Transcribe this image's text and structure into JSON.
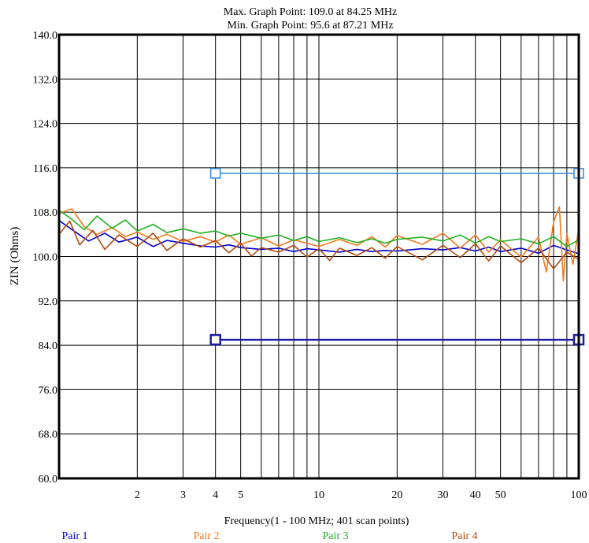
{
  "chart_data": {
    "type": "line",
    "subtitle_max": "Max. Graph Point: 109.0 at 84.25 MHz",
    "subtitle_min": "Min. Graph Point: 95.6 at 87.21 MHz",
    "xlabel": "Frequency(1 - 100 MHz; 401 scan points)",
    "ylabel": "ZIN (Ohms)",
    "x_scale": "log",
    "xlim": [
      1,
      100
    ],
    "ylim": [
      60,
      140
    ],
    "grid": true,
    "yticks": [
      60,
      68,
      76,
      84,
      92,
      100,
      108,
      116,
      124,
      132,
      140
    ],
    "ytick_labels": [
      "60.0",
      "68.0",
      "76.0",
      "84.0",
      "92.0",
      "100.0",
      "108.0",
      "116.0",
      "124.0",
      "132.0",
      "140.0"
    ],
    "xticks": [
      2,
      3,
      4,
      5,
      10,
      20,
      30,
      40,
      50,
      100
    ],
    "xtick_labels": [
      "2",
      "3",
      "4",
      "5",
      "10",
      "20",
      "30",
      "40",
      "50",
      "100"
    ],
    "legend_position": "bottom",
    "limit_lines": [
      {
        "x": [
          4,
          100
        ],
        "y": [
          115.0,
          115.0
        ],
        "color": "#2c8ee0",
        "marker": "square"
      },
      {
        "x": [
          4,
          100
        ],
        "y": [
          85.0,
          85.0
        ],
        "color": "#1c1ca0",
        "marker": "square"
      }
    ],
    "series": [
      {
        "name": "Pair 1",
        "color": "#0000d0",
        "x": [
          1,
          1.15,
          1.3,
          1.5,
          1.7,
          2,
          2.3,
          2.6,
          3,
          3.5,
          4,
          4.5,
          5,
          6,
          7,
          8,
          9,
          10,
          12,
          14,
          16,
          18,
          20,
          25,
          30,
          35,
          40,
          45,
          50,
          60,
          70,
          80,
          90,
          100
        ],
        "y": [
          106.5,
          104.5,
          102.8,
          104.2,
          102.6,
          103.5,
          101.8,
          102.9,
          102.4,
          101.9,
          101.7,
          102.1,
          101.6,
          101.3,
          101.5,
          100.9,
          101.4,
          101.2,
          100.8,
          101.3,
          100.9,
          101.1,
          101.0,
          101.4,
          101.2,
          101.6,
          101.0,
          101.7,
          100.9,
          101.5,
          100.6,
          102.0,
          101.2,
          100.5
        ]
      },
      {
        "name": "Pair 2",
        "color": "#f07a20",
        "x": [
          1,
          1.12,
          1.25,
          1.4,
          1.6,
          1.8,
          2,
          2.3,
          2.6,
          3,
          3.5,
          4,
          4.5,
          5,
          6,
          7,
          8,
          9,
          10,
          12,
          14,
          16,
          18,
          20,
          25,
          30,
          35,
          40,
          45,
          50,
          60,
          70,
          75,
          80,
          84.25,
          87.21,
          90,
          95,
          100
        ],
        "y": [
          107.8,
          108.6,
          105.4,
          104.0,
          105.2,
          103.6,
          104.4,
          103.1,
          104.0,
          102.7,
          103.6,
          102.6,
          103.9,
          102.2,
          103.4,
          101.9,
          103.0,
          102.4,
          101.8,
          103.1,
          102.0,
          103.6,
          101.7,
          103.8,
          102.2,
          104.2,
          101.5,
          103.9,
          100.8,
          103.0,
          99.9,
          103.5,
          97.2,
          106.2,
          109.0,
          95.6,
          104.1,
          98.6,
          105.0
        ]
      },
      {
        "name": "Pair 3",
        "color": "#20b020",
        "x": [
          1,
          1.1,
          1.25,
          1.4,
          1.6,
          1.8,
          2,
          2.3,
          2.6,
          3,
          3.5,
          4,
          4.5,
          5,
          6,
          7,
          8,
          9,
          10,
          12,
          14,
          16,
          18,
          20,
          25,
          30,
          35,
          40,
          45,
          50,
          60,
          70,
          80,
          90,
          100
        ],
        "y": [
          108.3,
          107.0,
          104.8,
          107.3,
          105.1,
          106.6,
          104.6,
          105.8,
          104.3,
          105.0,
          104.2,
          104.6,
          103.7,
          104.2,
          103.3,
          103.9,
          102.9,
          103.6,
          102.7,
          103.4,
          102.5,
          103.2,
          102.4,
          103.1,
          103.5,
          102.8,
          103.9,
          102.4,
          103.6,
          102.7,
          103.2,
          102.3,
          103.6,
          101.8,
          103.0
        ]
      },
      {
        "name": "Pair 4",
        "color": "#b04a10",
        "x": [
          1,
          1.1,
          1.2,
          1.35,
          1.5,
          1.7,
          2,
          2.3,
          2.6,
          3,
          3.5,
          4,
          4.5,
          5,
          5.5,
          6,
          7,
          8,
          9,
          10,
          11,
          12,
          14,
          16,
          18,
          20,
          25,
          30,
          35,
          40,
          45,
          50,
          60,
          70,
          80,
          90,
          100
        ],
        "y": [
          104.0,
          106.4,
          102.1,
          104.7,
          101.3,
          103.9,
          101.8,
          104.2,
          101.1,
          103.2,
          101.7,
          102.9,
          100.7,
          102.4,
          100.1,
          101.6,
          100.8,
          102.0,
          99.9,
          101.4,
          99.3,
          101.5,
          100.2,
          101.6,
          99.7,
          101.8,
          99.4,
          102.0,
          99.8,
          102.3,
          99.2,
          101.9,
          98.9,
          101.5,
          97.8,
          100.8,
          99.5
        ]
      }
    ]
  }
}
